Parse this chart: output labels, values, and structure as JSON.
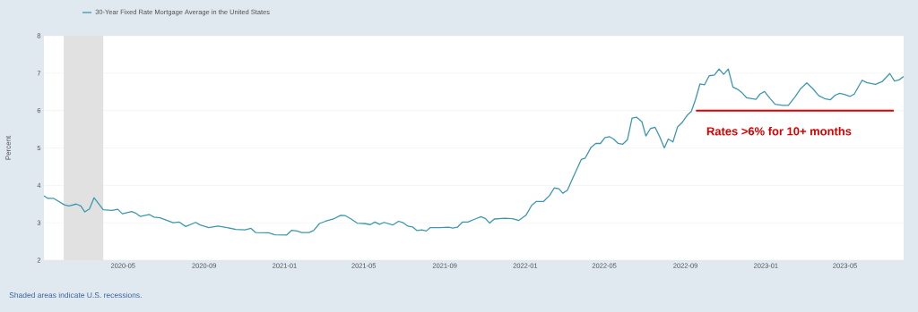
{
  "chart_data": {
    "type": "line",
    "ylabel": "Percent",
    "xlim": [
      "2020-01-02",
      "2023-07-29"
    ],
    "ylim": [
      2,
      8
    ],
    "yticks": [
      2,
      3,
      4,
      5,
      6,
      7,
      8
    ],
    "xticks": [
      {
        "value": "2020-05-01",
        "label": "2020-05"
      },
      {
        "value": "2020-09-01",
        "label": "2020-09"
      },
      {
        "value": "2021-01-01",
        "label": "2021-01"
      },
      {
        "value": "2021-05-01",
        "label": "2021-05"
      },
      {
        "value": "2021-09-01",
        "label": "2021-09"
      },
      {
        "value": "2022-01-01",
        "label": "2022-01"
      },
      {
        "value": "2022-05-01",
        "label": "2022-05"
      },
      {
        "value": "2022-09-01",
        "label": "2022-09"
      },
      {
        "value": "2023-01-01",
        "label": "2023-01"
      },
      {
        "value": "2023-05-01",
        "label": "2023-05"
      }
    ],
    "grid": "y",
    "legend": "top left",
    "marker": "none",
    "line_style": "solid",
    "bands": [
      {
        "axis": "x",
        "from": "2020-02-01",
        "to": "2020-04-01",
        "color": "#e1e1e1"
      }
    ],
    "annotations": [
      "Shaded areas indicate U.S. recessions.",
      "Rates >6% for 10+ months"
    ],
    "series": [
      {
        "name": "30-Year Fixed Rate Mortgage Average in the United States",
        "color": "#3d98ae",
        "x": [
          "2020-01-02",
          "2020-01-08",
          "2020-01-17",
          "2020-02-02",
          "2020-02-09",
          "2020-02-20",
          "2020-02-27",
          "2020-03-04",
          "2020-03-11",
          "2020-03-18",
          "2020-04-01",
          "2020-04-14",
          "2020-04-23",
          "2020-04-30",
          "2020-05-14",
          "2020-05-20",
          "2020-05-27",
          "2020-06-10",
          "2020-06-17",
          "2020-06-26",
          "2020-07-16",
          "2020-07-25",
          "2020-08-04",
          "2020-08-19",
          "2020-08-26",
          "2020-09-08",
          "2020-09-22",
          "2020-10-06",
          "2020-10-19",
          "2020-11-02",
          "2020-11-11",
          "2020-11-18",
          "2020-12-08",
          "2020-12-17",
          "2021-01-04",
          "2021-01-12",
          "2021-01-20",
          "2021-01-27",
          "2021-02-07",
          "2021-02-14",
          "2021-02-23",
          "2021-03-04",
          "2021-03-16",
          "2021-03-27",
          "2021-04-03",
          "2021-04-12",
          "2021-04-21",
          "2021-05-02",
          "2021-05-11",
          "2021-05-18",
          "2021-05-25",
          "2021-06-01",
          "2021-06-14",
          "2021-06-23",
          "2021-06-30",
          "2021-07-07",
          "2021-07-14",
          "2021-07-21",
          "2021-07-28",
          "2021-08-04",
          "2021-08-10",
          "2021-08-24",
          "2021-09-07",
          "2021-09-13",
          "2021-09-20",
          "2021-09-28",
          "2021-10-06",
          "2021-10-17",
          "2021-10-26",
          "2021-11-02",
          "2021-11-08",
          "2021-11-15",
          "2021-12-01",
          "2021-12-13",
          "2021-12-22",
          "2022-01-02",
          "2022-01-11",
          "2022-01-18",
          "2022-01-29",
          "2022-02-07",
          "2022-02-14",
          "2022-02-21",
          "2022-02-27",
          "2022-03-06",
          "2022-03-15",
          "2022-03-27",
          "2022-04-02",
          "2022-04-11",
          "2022-04-18",
          "2022-04-25",
          "2022-05-02",
          "2022-05-09",
          "2022-05-15",
          "2022-05-22",
          "2022-05-29",
          "2022-06-05",
          "2022-06-12",
          "2022-06-19",
          "2022-06-27",
          "2022-07-03",
          "2022-07-10",
          "2022-07-17",
          "2022-07-24",
          "2022-07-31",
          "2022-08-06",
          "2022-08-13",
          "2022-08-20",
          "2022-08-27",
          "2022-09-03",
          "2022-09-10",
          "2022-09-16",
          "2022-09-23",
          "2022-09-30",
          "2022-10-07",
          "2022-10-15",
          "2022-10-22",
          "2022-10-29",
          "2022-11-05",
          "2022-11-12",
          "2022-11-19",
          "2022-11-25",
          "2022-12-03",
          "2022-12-17",
          "2022-12-23",
          "2022-12-30",
          "2023-01-07",
          "2023-01-15",
          "2023-01-27",
          "2023-02-04",
          "2023-02-14",
          "2023-02-23",
          "2023-03-04",
          "2023-03-13",
          "2023-03-22",
          "2023-03-31",
          "2023-04-09",
          "2023-04-16",
          "2023-04-23",
          "2023-04-30",
          "2023-05-09",
          "2023-05-15",
          "2023-05-27",
          "2023-06-03",
          "2023-06-16",
          "2023-06-26",
          "2023-07-08",
          "2023-07-15",
          "2023-07-22",
          "2023-07-29"
        ],
        "values": [
          3.72,
          3.65,
          3.65,
          3.48,
          3.45,
          3.5,
          3.45,
          3.29,
          3.37,
          3.67,
          3.35,
          3.33,
          3.36,
          3.24,
          3.3,
          3.26,
          3.17,
          3.22,
          3.15,
          3.13,
          3.0,
          3.02,
          2.9,
          3.01,
          2.94,
          2.87,
          2.91,
          2.87,
          2.82,
          2.81,
          2.85,
          2.74,
          2.73,
          2.68,
          2.67,
          2.8,
          2.78,
          2.74,
          2.74,
          2.79,
          2.98,
          3.04,
          3.1,
          3.2,
          3.19,
          3.1,
          2.99,
          2.98,
          2.95,
          3.02,
          2.96,
          3.01,
          2.94,
          3.04,
          3.0,
          2.91,
          2.89,
          2.79,
          2.81,
          2.78,
          2.87,
          2.87,
          2.88,
          2.86,
          2.88,
          3.02,
          3.02,
          3.1,
          3.16,
          3.11,
          2.99,
          3.1,
          3.12,
          3.11,
          3.06,
          3.2,
          3.47,
          3.57,
          3.57,
          3.73,
          3.93,
          3.91,
          3.79,
          3.87,
          4.23,
          4.69,
          4.73,
          5.02,
          5.12,
          5.12,
          5.28,
          5.3,
          5.24,
          5.12,
          5.1,
          5.22,
          5.8,
          5.82,
          5.7,
          5.32,
          5.52,
          5.55,
          5.3,
          5.0,
          5.24,
          5.16,
          5.56,
          5.68,
          5.86,
          5.98,
          6.28,
          6.71,
          6.69,
          6.93,
          6.95,
          7.11,
          6.97,
          7.11,
          6.63,
          6.57,
          6.49,
          6.34,
          6.3,
          6.44,
          6.51,
          6.33,
          6.17,
          6.14,
          6.14,
          6.36,
          6.59,
          6.74,
          6.59,
          6.4,
          6.32,
          6.29,
          6.41,
          6.46,
          6.43,
          6.38,
          6.44,
          6.81,
          6.75,
          6.7,
          6.77,
          6.99,
          6.79,
          6.82,
          6.91
        ]
      },
      {
        "color": "#e00000",
        "x": [
          "2022-09-17",
          "2023-07-14"
        ],
        "values": [
          6,
          6
        ]
      }
    ]
  }
}
